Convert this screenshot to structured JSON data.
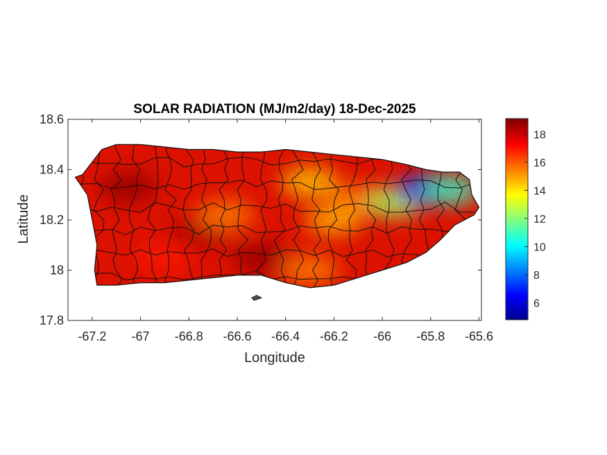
{
  "title": "SOLAR RADIATION (MJ/m2/day) 18-Dec-2025",
  "xlabel": "Longitude",
  "ylabel": "Latitude",
  "map_data": {
    "x_range": [
      -67.3,
      -65.59
    ],
    "y_range": [
      17.8,
      18.6
    ],
    "x_ticks": [
      -67.2,
      -67.0,
      -66.8,
      -66.6,
      -66.4,
      -66.2,
      -66.0,
      -65.8,
      -65.6
    ],
    "x_tick_labels": [
      "-67.2",
      "-67",
      "-66.8",
      "-66.6",
      "-66.4",
      "-66.2",
      "-66",
      "-65.8",
      "-65.6"
    ],
    "y_ticks": [
      17.8,
      18.0,
      18.2,
      18.4,
      18.6
    ],
    "y_tick_labels": [
      "17.8",
      "18",
      "18.2",
      "18.4",
      "18.6"
    ],
    "colorbar": {
      "colormap": "jet",
      "range": [
        4.8,
        19.1
      ],
      "ticks": [
        6,
        8,
        10,
        12,
        14,
        16,
        18
      ],
      "tick_labels": [
        "6",
        "8",
        "10",
        "12",
        "14",
        "16",
        "18"
      ]
    },
    "region_outline_lonlat": [
      [
        -67.27,
        18.37
      ],
      [
        -67.24,
        18.38
      ],
      [
        -67.2,
        18.43
      ],
      [
        -67.16,
        18.48
      ],
      [
        -67.1,
        18.5
      ],
      [
        -67.0,
        18.5
      ],
      [
        -66.9,
        18.49
      ],
      [
        -66.8,
        18.48
      ],
      [
        -66.7,
        18.48
      ],
      [
        -66.6,
        18.47
      ],
      [
        -66.5,
        18.47
      ],
      [
        -66.4,
        18.48
      ],
      [
        -66.3,
        18.47
      ],
      [
        -66.2,
        18.46
      ],
      [
        -66.1,
        18.45
      ],
      [
        -66.0,
        18.44
      ],
      [
        -65.9,
        18.42
      ],
      [
        -65.82,
        18.4
      ],
      [
        -65.75,
        18.39
      ],
      [
        -65.68,
        18.39
      ],
      [
        -65.64,
        18.36
      ],
      [
        -65.63,
        18.3
      ],
      [
        -65.6,
        18.25
      ],
      [
        -65.62,
        18.22
      ],
      [
        -65.7,
        18.18
      ],
      [
        -65.76,
        18.12
      ],
      [
        -65.82,
        18.07
      ],
      [
        -65.9,
        18.03
      ],
      [
        -66.0,
        18.0
      ],
      [
        -66.1,
        17.97
      ],
      [
        -66.2,
        17.94
      ],
      [
        -66.3,
        17.93
      ],
      [
        -66.4,
        17.95
      ],
      [
        -66.5,
        17.98
      ],
      [
        -66.6,
        17.98
      ],
      [
        -66.7,
        17.97
      ],
      [
        -66.8,
        17.96
      ],
      [
        -66.9,
        17.95
      ],
      [
        -67.0,
        17.95
      ],
      [
        -67.1,
        17.94
      ],
      [
        -67.18,
        17.94
      ],
      [
        -67.19,
        18.0
      ],
      [
        -67.18,
        18.1
      ],
      [
        -67.2,
        18.2
      ],
      [
        -67.22,
        18.3
      ],
      [
        -67.27,
        18.37
      ]
    ],
    "islet_outline_lonlat": [
      [
        -66.54,
        17.89
      ],
      [
        -66.52,
        17.9
      ],
      [
        -66.5,
        17.89
      ],
      [
        -66.53,
        17.88
      ]
    ],
    "value_zones": [
      {
        "lon": -67.05,
        "lat": 18.33,
        "value": 18.8
      },
      {
        "lon": -66.75,
        "lat": 18.15,
        "value": 18.5
      },
      {
        "lon": -66.5,
        "lat": 18.05,
        "value": 18.8
      },
      {
        "lon": -66.3,
        "lat": 18.35,
        "value": 14.5
      },
      {
        "lon": -66.1,
        "lat": 18.28,
        "value": 15.5
      },
      {
        "lon": -66.2,
        "lat": 18.2,
        "value": 14.8
      },
      {
        "lon": -65.95,
        "lat": 18.27,
        "value": 12.5
      },
      {
        "lon": -65.82,
        "lat": 18.32,
        "value": 7.0
      },
      {
        "lon": -65.72,
        "lat": 18.32,
        "value": 11.0
      },
      {
        "lon": -66.65,
        "lat": 18.22,
        "value": 15.5
      },
      {
        "lon": -66.3,
        "lat": 18.0,
        "value": 15.5
      },
      {
        "lon": -66.9,
        "lat": 18.05,
        "value": 17.0
      }
    ]
  }
}
